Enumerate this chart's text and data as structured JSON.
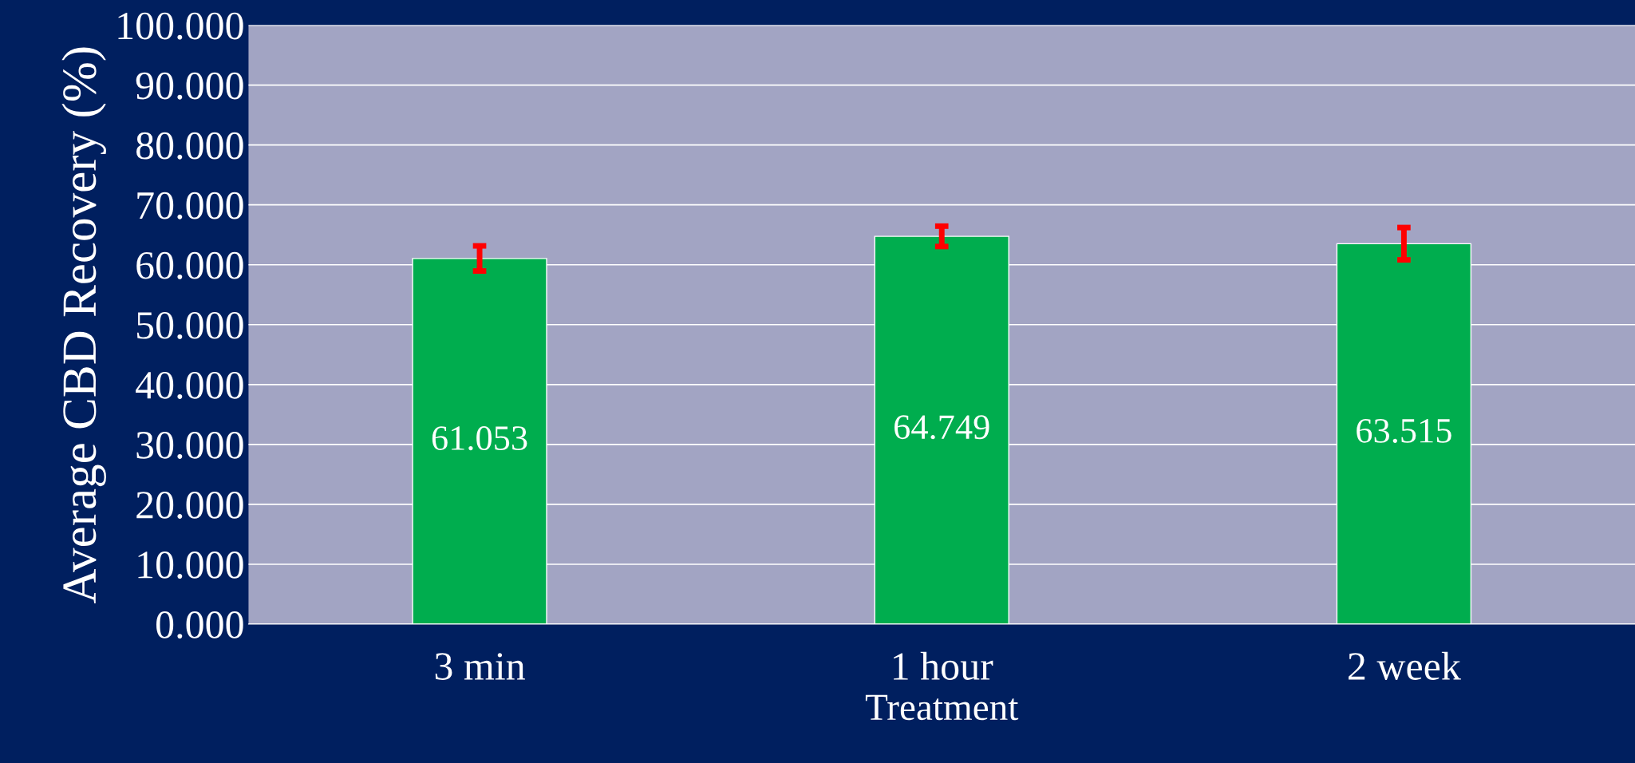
{
  "chart_data": {
    "type": "bar",
    "ylabel": "Average CBD Recovery (%)",
    "xlabel": "Treatment",
    "categories": [
      "3 min",
      "1 hour",
      "2 week"
    ],
    "values": [
      61.053,
      64.749,
      63.515
    ],
    "errors": [
      2.1,
      1.7,
      2.7
    ],
    "color": "#00ad4e",
    "data_labels": true,
    "ylim": [
      0,
      100
    ],
    "yticks": [
      {
        "value": 0,
        "label": "0.000"
      },
      {
        "value": 10,
        "label": "10.000"
      },
      {
        "value": 20,
        "label": "20.000"
      },
      {
        "value": 30,
        "label": "30.000"
      },
      {
        "value": 40,
        "label": "40.000"
      },
      {
        "value": 50,
        "label": "50.000"
      },
      {
        "value": 60,
        "label": "60.000"
      },
      {
        "value": 70,
        "label": "70.000"
      },
      {
        "value": 80,
        "label": "80.000"
      },
      {
        "value": 90,
        "label": "90.000"
      },
      {
        "value": 100,
        "label": "100.000"
      }
    ],
    "grid": "y"
  }
}
